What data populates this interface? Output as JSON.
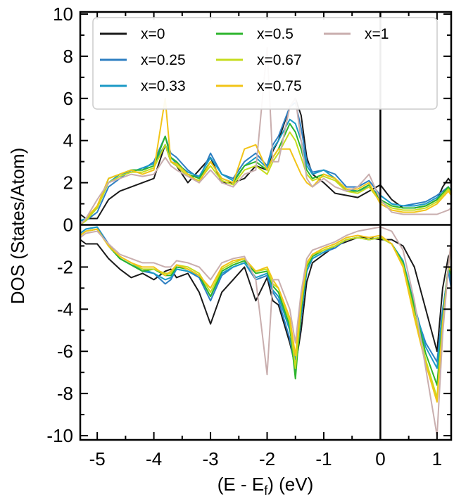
{
  "chart_data": {
    "type": "line",
    "xlabel": "(E - E_f) (eV)",
    "ylabel": "DOS (States/Atom)",
    "xlim": [
      -5.3,
      1.25
    ],
    "ylim": [
      -10.2,
      10.1
    ],
    "x_ticks": [
      -5,
      -4,
      -3,
      -2,
      -1,
      0,
      1
    ],
    "y_ticks": [
      10,
      8,
      6,
      4,
      2,
      0,
      -2,
      -4,
      -6,
      -8,
      -10
    ],
    "x_tick_labels": [
      "-5",
      "-4",
      "-3",
      "-2",
      "-1",
      "0",
      "1"
    ],
    "y_tick_labels": [
      "10",
      "8",
      "6",
      "4",
      "2",
      "0",
      "-2",
      "-4",
      "-6",
      "-8",
      "-10"
    ],
    "grid": false,
    "reference_lines": {
      "horizontal_y": 0,
      "vertical_x": 0
    },
    "legend": {
      "placement": "top",
      "columns": 3,
      "entries": [
        "x=0",
        "x=0.25",
        "x=0.33",
        "x=0.5",
        "x=0.67",
        "x=0.75",
        "x=1"
      ]
    },
    "x": [
      -5.3,
      -5.2,
      -5.0,
      -4.8,
      -4.6,
      -4.4,
      -4.2,
      -4.0,
      -3.8,
      -3.7,
      -3.6,
      -3.4,
      -3.2,
      -3.0,
      -2.8,
      -2.6,
      -2.4,
      -2.2,
      -2.0,
      -1.9,
      -1.8,
      -1.6,
      -1.5,
      -1.4,
      -1.3,
      -1.2,
      -1.0,
      -0.8,
      -0.6,
      -0.4,
      -0.2,
      0.0,
      0.2,
      0.4,
      0.6,
      0.8,
      1.0,
      1.1,
      1.2,
      1.25
    ],
    "series": [
      {
        "name": "x=0",
        "color": "#1a1a1a",
        "up": [
          0.5,
          0.3,
          0.3,
          1.2,
          1.6,
          1.8,
          2.0,
          2.2,
          3.8,
          3.0,
          2.8,
          2.0,
          2.6,
          3.2,
          2.0,
          2.0,
          2.2,
          2.8,
          2.6,
          3.5,
          4.0,
          5.6,
          6.0,
          5.2,
          3.2,
          2.4,
          2.0,
          1.5,
          1.4,
          1.3,
          1.6,
          1.9,
          1.2,
          0.8,
          0.8,
          0.9,
          1.2,
          1.8,
          2.2,
          2.0
        ],
        "down": [
          -0.7,
          -0.9,
          -0.9,
          -1.6,
          -2.1,
          -2.5,
          -2.3,
          -2.6,
          -2.2,
          -2.1,
          -2.5,
          -2.3,
          -3.2,
          -4.7,
          -3.2,
          -2.6,
          -2.0,
          -3.6,
          -2.5,
          -3.6,
          -3.8,
          -5.6,
          -6.7,
          -5.0,
          -2.7,
          -1.8,
          -1.4,
          -1.0,
          -0.8,
          -0.6,
          -0.6,
          -0.7,
          -0.7,
          -1.0,
          -2.0,
          -4.0,
          -6.0,
          -3.0,
          -1.5,
          -1.3
        ]
      },
      {
        "name": "x=0.25",
        "color": "#2e7fc2",
        "up": [
          0.2,
          0.2,
          0.6,
          1.8,
          2.2,
          2.6,
          2.6,
          3.0,
          4.2,
          3.4,
          3.2,
          2.6,
          2.2,
          3.4,
          2.4,
          2.2,
          3.0,
          3.4,
          2.8,
          3.8,
          4.2,
          5.6,
          5.8,
          4.6,
          3.0,
          2.5,
          2.6,
          2.4,
          1.8,
          1.8,
          2.1,
          1.4,
          1.0,
          0.9,
          1.0,
          1.1,
          1.4,
          1.6,
          1.8,
          1.6
        ],
        "down": [
          -0.4,
          -0.2,
          -0.1,
          -0.9,
          -1.6,
          -1.9,
          -2.2,
          -2.3,
          -2.8,
          -2.6,
          -2.1,
          -2.2,
          -2.5,
          -3.6,
          -2.4,
          -2.0,
          -1.8,
          -2.6,
          -2.4,
          -3.2,
          -3.6,
          -5.4,
          -6.9,
          -4.4,
          -2.2,
          -1.6,
          -1.3,
          -1.1,
          -0.7,
          -0.6,
          -0.7,
          -0.6,
          -0.9,
          -1.8,
          -4.0,
          -5.6,
          -6.5,
          -4.0,
          -2.2,
          -3.0
        ]
      },
      {
        "name": "x=0.33",
        "color": "#1b9ac6",
        "up": [
          0.2,
          0.3,
          0.8,
          2.0,
          2.4,
          2.5,
          2.7,
          2.9,
          3.8,
          3.2,
          2.9,
          2.5,
          2.3,
          3.2,
          2.4,
          2.1,
          2.8,
          3.2,
          2.7,
          3.6,
          4.0,
          5.0,
          4.8,
          4.0,
          2.8,
          2.4,
          2.6,
          2.2,
          1.7,
          1.6,
          1.8,
          1.4,
          1.0,
          0.9,
          0.9,
          1.0,
          1.3,
          1.5,
          1.7,
          1.6
        ],
        "down": [
          -0.4,
          -0.2,
          -0.1,
          -1.0,
          -1.6,
          -1.9,
          -2.1,
          -2.3,
          -2.6,
          -2.5,
          -2.1,
          -2.2,
          -2.4,
          -3.4,
          -2.3,
          -2.0,
          -1.8,
          -2.5,
          -2.3,
          -3.1,
          -3.4,
          -5.0,
          -6.4,
          -4.2,
          -2.2,
          -1.6,
          -1.3,
          -1.0,
          -0.7,
          -0.6,
          -0.7,
          -0.6,
          -0.9,
          -1.7,
          -3.8,
          -5.8,
          -6.8,
          -4.2,
          -2.0,
          -2.6
        ]
      },
      {
        "name": "x=0.5",
        "color": "#2db52d",
        "up": [
          0.0,
          0.2,
          0.8,
          2.2,
          2.4,
          2.6,
          2.6,
          2.8,
          4.2,
          3.2,
          3.0,
          2.4,
          2.2,
          3.0,
          2.2,
          2.0,
          2.8,
          3.0,
          2.6,
          3.2,
          3.6,
          4.8,
          4.4,
          3.6,
          2.6,
          2.2,
          2.4,
          2.2,
          1.6,
          1.6,
          1.9,
          1.2,
          0.9,
          0.8,
          0.8,
          0.9,
          1.2,
          1.5,
          1.8,
          1.5
        ],
        "down": [
          -0.5,
          -0.3,
          -0.2,
          -1.0,
          -1.6,
          -1.9,
          -2.2,
          -2.1,
          -2.4,
          -2.4,
          -2.0,
          -2.1,
          -2.4,
          -3.4,
          -2.2,
          -1.9,
          -1.7,
          -2.3,
          -2.2,
          -2.9,
          -3.2,
          -4.8,
          -7.3,
          -4.0,
          -2.0,
          -1.5,
          -1.2,
          -1.0,
          -0.7,
          -0.6,
          -0.7,
          -0.6,
          -0.9,
          -1.8,
          -3.9,
          -6.1,
          -7.6,
          -4.5,
          -2.0,
          -2.4
        ]
      },
      {
        "name": "x=0.67",
        "color": "#c6dc1e",
        "up": [
          0.0,
          0.2,
          0.8,
          2.0,
          2.3,
          2.5,
          2.5,
          2.7,
          3.8,
          3.0,
          2.8,
          2.3,
          2.1,
          2.8,
          2.1,
          1.9,
          2.6,
          2.8,
          2.4,
          3.0,
          3.4,
          4.4,
          4.0,
          3.2,
          2.4,
          2.1,
          2.3,
          2.1,
          1.6,
          1.5,
          1.8,
          1.1,
          0.8,
          0.7,
          0.7,
          0.8,
          1.1,
          1.4,
          1.7,
          1.5
        ],
        "down": [
          -0.5,
          -0.3,
          -0.2,
          -1.0,
          -1.5,
          -1.8,
          -2.1,
          -2.1,
          -2.3,
          -2.3,
          -1.9,
          -2.0,
          -2.3,
          -3.2,
          -2.1,
          -1.8,
          -1.6,
          -2.2,
          -2.1,
          -2.8,
          -3.0,
          -4.6,
          -6.8,
          -3.8,
          -1.9,
          -1.4,
          -1.2,
          -1.0,
          -0.7,
          -0.6,
          -0.7,
          -0.6,
          -0.9,
          -1.9,
          -4.2,
          -6.4,
          -8.2,
          -4.6,
          -2.0,
          -2.2
        ]
      },
      {
        "name": "x=0.75",
        "color": "#f2c418",
        "up": [
          0.0,
          0.3,
          0.9,
          2.2,
          2.4,
          2.6,
          2.4,
          2.6,
          6.0,
          3.0,
          2.9,
          2.4,
          2.0,
          3.0,
          2.2,
          2.0,
          3.6,
          3.8,
          2.6,
          3.2,
          3.6,
          3.6,
          3.0,
          2.4,
          2.0,
          1.8,
          2.4,
          2.2,
          1.7,
          1.7,
          2.0,
          1.0,
          0.7,
          0.6,
          0.6,
          0.7,
          1.0,
          1.3,
          1.6,
          1.4
        ],
        "down": [
          -0.5,
          -0.3,
          -0.2,
          -1.0,
          -1.5,
          -1.8,
          -2.0,
          -2.0,
          -2.4,
          -2.2,
          -1.9,
          -2.1,
          -2.4,
          -3.0,
          -2.0,
          -1.7,
          -1.6,
          -2.2,
          -2.0,
          -2.6,
          -3.0,
          -4.4,
          -6.2,
          -3.6,
          -1.8,
          -1.4,
          -1.1,
          -0.9,
          -0.6,
          -0.5,
          -0.6,
          -0.5,
          -0.9,
          -2.0,
          -4.4,
          -6.6,
          -8.4,
          -4.8,
          -2.0,
          -0.8
        ]
      },
      {
        "name": "x=1",
        "color": "#c9aeae",
        "up": [
          0.0,
          0.3,
          1.2,
          2.0,
          2.2,
          2.4,
          2.3,
          2.4,
          3.2,
          2.8,
          2.6,
          2.3,
          2.0,
          2.6,
          2.0,
          1.8,
          2.4,
          2.6,
          8.4,
          3.0,
          3.0,
          5.6,
          6.0,
          4.0,
          2.2,
          1.8,
          2.2,
          1.8,
          1.6,
          1.8,
          2.4,
          1.2,
          0.6,
          0.5,
          0.5,
          0.5,
          0.5,
          0.6,
          0.7,
          0.8
        ],
        "down": [
          -0.6,
          -0.4,
          -0.3,
          -0.9,
          -1.4,
          -1.6,
          -1.8,
          -1.8,
          -2.0,
          -2.0,
          -1.7,
          -1.8,
          -2.0,
          -2.6,
          -1.8,
          -1.6,
          -1.5,
          -2.6,
          -7.1,
          -2.6,
          -2.6,
          -4.0,
          -5.6,
          -3.2,
          -1.6,
          -1.2,
          -1.0,
          -0.8,
          -0.5,
          -0.3,
          -0.2,
          -0.1,
          -0.3,
          -1.2,
          -3.6,
          -6.8,
          -10.0,
          -5.2,
          -2.0,
          -0.7
        ]
      }
    ]
  }
}
